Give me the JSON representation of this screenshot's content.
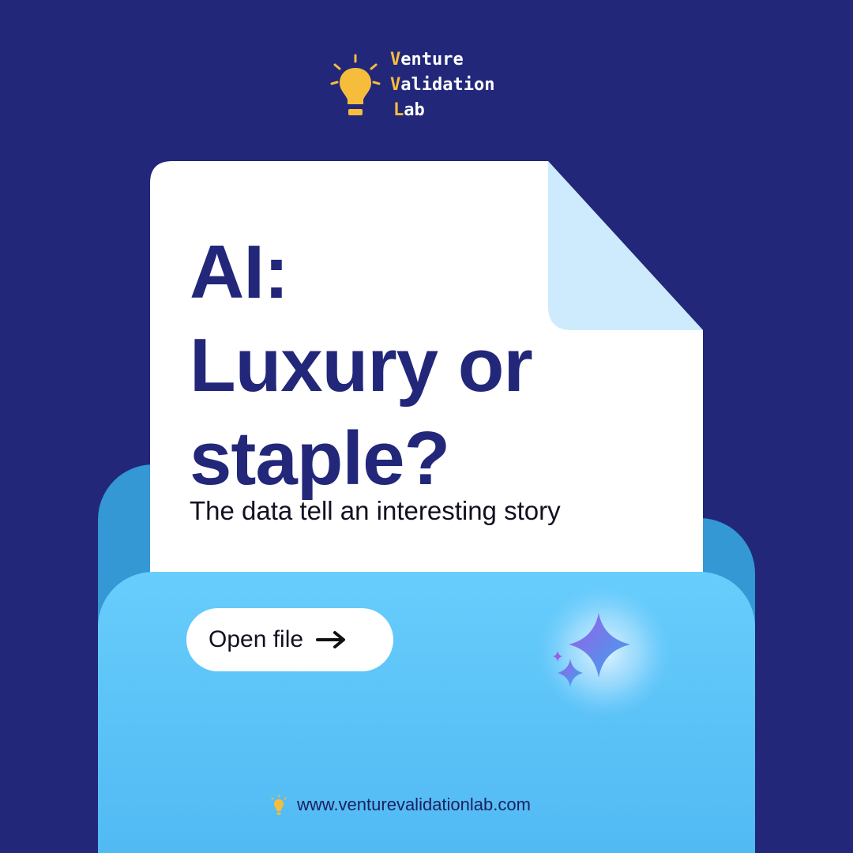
{
  "brand": {
    "line1": {
      "cap": "V",
      "rest": "enture"
    },
    "line2": {
      "cap": "V",
      "rest": "alidation"
    },
    "line3": {
      "cap": "L",
      "rest": "ab"
    },
    "bulb_icon": "lightbulb-icon"
  },
  "card": {
    "headline": [
      "AI:",
      "Luxury or",
      "staple?"
    ],
    "subtitle": "The data tell an interesting story"
  },
  "cta": {
    "label": "Open file",
    "icon": "arrow-right-icon"
  },
  "decoration": {
    "icon": "sparkle-icon"
  },
  "footer": {
    "icon": "lightbulb-icon",
    "url": "www.venturevalidationlab.com"
  },
  "colors": {
    "background": "#22277a",
    "accent": "#f6bd3c",
    "paper": "#ffffff",
    "paper_fold": "#cdebfd",
    "folder_front": "#5ec4f8",
    "folder_back": "#3398d4",
    "heading_text": "#22277a"
  }
}
